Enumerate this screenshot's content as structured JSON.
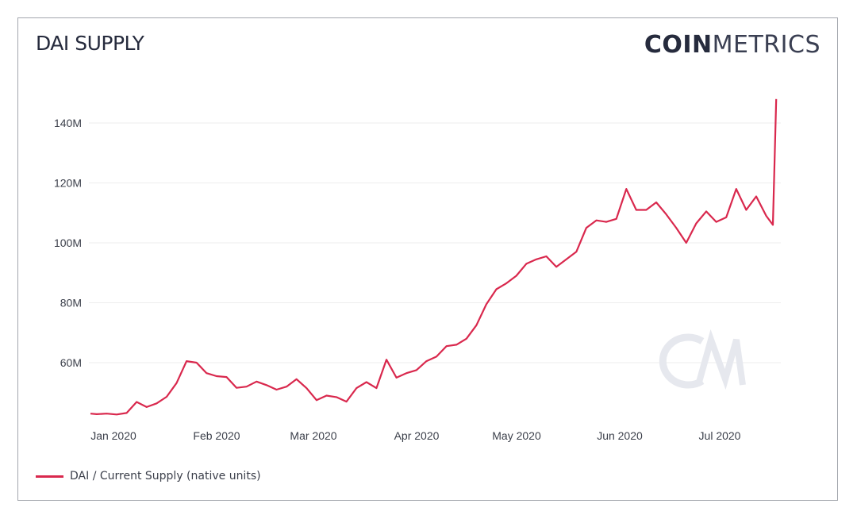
{
  "header": {
    "title": "DAI SUPPLY",
    "brand_bold": "COIN",
    "brand_light": "METRICS",
    "watermark": "CM"
  },
  "legend": {
    "items": [
      {
        "label": "DAI / Current Supply (native units)",
        "color": "#d9284d"
      }
    ]
  },
  "colors": {
    "line": "#d9284d",
    "grid": "#eeeeee",
    "frame": "#a3a6ad",
    "text": "#262b3d",
    "watermark": "#e6e8ee"
  },
  "chart_data": {
    "type": "line",
    "title": "DAI SUPPLY",
    "xlabel": "",
    "ylabel": "",
    "ylim": [
      42,
      148
    ],
    "yticks": [
      60,
      80,
      100,
      120,
      140
    ],
    "ytick_labels": [
      "60M",
      "80M",
      "100M",
      "120M",
      "140M"
    ],
    "xtick_labels": [
      "Jan 2020",
      "Feb 2020",
      "Mar 2020",
      "Apr 2020",
      "May 2020",
      "Jun 2020",
      "Jul 2020"
    ],
    "grid": true,
    "legend_position": "bottom-left",
    "series": [
      {
        "name": "DAI / Current Supply (native units)",
        "unit": "M",
        "x": [
          "2019-12-28",
          "2019-12-31",
          "2020-01-03",
          "2020-01-06",
          "2020-01-09",
          "2020-01-12",
          "2020-01-15",
          "2020-01-18",
          "2020-01-21",
          "2020-01-24",
          "2020-01-27",
          "2020-01-30",
          "2020-02-02",
          "2020-02-05",
          "2020-02-08",
          "2020-02-11",
          "2020-02-14",
          "2020-02-17",
          "2020-02-20",
          "2020-02-23",
          "2020-02-26",
          "2020-02-29",
          "2020-03-03",
          "2020-03-06",
          "2020-03-09",
          "2020-03-12",
          "2020-03-15",
          "2020-03-18",
          "2020-03-21",
          "2020-03-24",
          "2020-03-27",
          "2020-03-30",
          "2020-04-02",
          "2020-04-05",
          "2020-04-08",
          "2020-04-11",
          "2020-04-14",
          "2020-04-17",
          "2020-04-20",
          "2020-04-23",
          "2020-04-26",
          "2020-04-29",
          "2020-05-02",
          "2020-05-05",
          "2020-05-08",
          "2020-05-11",
          "2020-05-14",
          "2020-05-17",
          "2020-05-20",
          "2020-05-23",
          "2020-05-26",
          "2020-05-29",
          "2020-06-01",
          "2020-06-04",
          "2020-06-07",
          "2020-06-10",
          "2020-06-13",
          "2020-06-16",
          "2020-06-19",
          "2020-06-22",
          "2020-06-25",
          "2020-06-28",
          "2020-07-01",
          "2020-07-04",
          "2020-07-07",
          "2020-07-10",
          "2020-07-13",
          "2020-07-16",
          "2020-07-19",
          "2020-07-21",
          "2020-07-22"
        ],
        "values": [
          43.0,
          42.8,
          43.0,
          42.7,
          43.2,
          46.9,
          45.2,
          46.4,
          48.6,
          53.2,
          60.5,
          60.0,
          56.5,
          55.5,
          55.2,
          51.6,
          52.0,
          53.7,
          52.5,
          51.0,
          52.0,
          54.5,
          51.5,
          47.5,
          49.0,
          48.5,
          47.0,
          51.5,
          53.5,
          51.5,
          61.0,
          55.0,
          56.5,
          57.5,
          60.5,
          62.0,
          65.5,
          66.0,
          68.0,
          72.5,
          79.5,
          84.5,
          86.5,
          89.0,
          93.0,
          94.5,
          95.5,
          92.0,
          94.5,
          97.0,
          105.0,
          107.5,
          107.0,
          108.0,
          118.0,
          111.0,
          111.0,
          113.5,
          109.5,
          105.0,
          100.0,
          106.5,
          110.5,
          107.0,
          108.5,
          118.0,
          111.0,
          115.5,
          109.0,
          106.0,
          148.0
        ]
      }
    ]
  }
}
